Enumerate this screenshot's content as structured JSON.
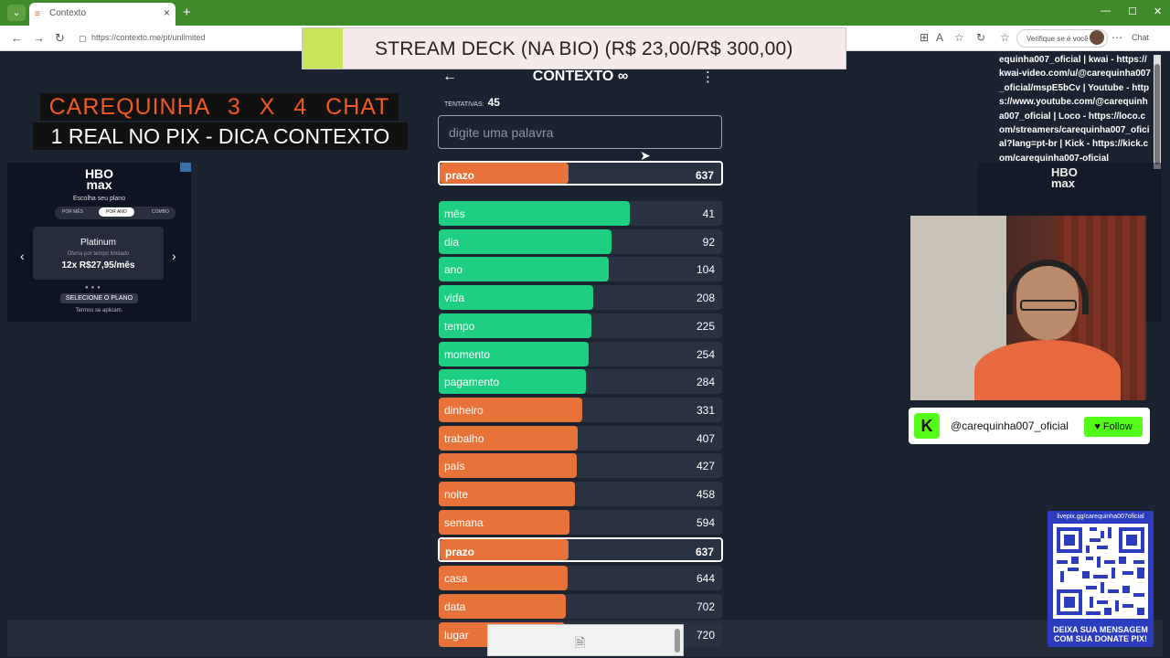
{
  "browser": {
    "tab_title": "Contexto",
    "url": "https://contexto.me/pt/unlimited",
    "search_pill": "Verifique se é você",
    "copilot_label": "Chat"
  },
  "overlay": {
    "stream_banner": "STREAM DECK (NA BIO) (R$ 23,00/R$ 300,00)",
    "chat_title": "CAREQUINHA 3 X 4 CHAT",
    "chat_subtitle": "1 REAL NO PIX - DICA CONTEXTO",
    "links_text": "equinha007_oficial | kwai - https://kwai-video.com/u/@carequinha007_oficial/mspE5bCv | Youtube - https://www.youtube.com/@carequinha007_oficial | Loco - https://loco.com/streamers/carequinha007_oficial?lang=pt-br | Kick - https://kick.com/carequinha007-oficial",
    "kick_letter": "K",
    "kick_user": "@carequinha007_oficial",
    "kick_follow": "♥ Follow",
    "qr_url": "livepix.gg/carequinha007oficial",
    "qr_message": "DEIXA SUA MENSAGEM COM SUA DONATE PIX!"
  },
  "ad": {
    "logo_top": "HBO",
    "logo_bottom": "max",
    "choose_plan": "Escolha seu plano",
    "tab_monthly": "POR MÊS",
    "tab_annual": "POR ANO",
    "tab_combo": "COMBO",
    "plan_name": "Platinum",
    "plan_note": "Oferta por tempo limitado",
    "plan_price": "12x R$27,95/mês",
    "select_button": "SELECIONE O PLANO",
    "terms": "Termos se aplicam."
  },
  "game": {
    "title": "CONTEXTO ∞",
    "attempts_label": "TENTATIVAS:",
    "attempts_value": "45",
    "input_placeholder": "digite uma palavra",
    "last_guess": {
      "word": "prazo",
      "rank": 637,
      "color": "#e8733a"
    },
    "guesses": [
      {
        "word": "mês",
        "rank": 41,
        "color": "#1ecf82"
      },
      {
        "word": "dia",
        "rank": 92,
        "color": "#1ecf82"
      },
      {
        "word": "ano",
        "rank": 104,
        "color": "#1ecf82"
      },
      {
        "word": "vida",
        "rank": 208,
        "color": "#1ecf82"
      },
      {
        "word": "tempo",
        "rank": 225,
        "color": "#1ecf82"
      },
      {
        "word": "momento",
        "rank": 254,
        "color": "#1ecf82"
      },
      {
        "word": "pagamento",
        "rank": 284,
        "color": "#1ecf82"
      },
      {
        "word": "dinheiro",
        "rank": 331,
        "color": "#e8733a"
      },
      {
        "word": "trabalho",
        "rank": 407,
        "color": "#e8733a"
      },
      {
        "word": "país",
        "rank": 427,
        "color": "#e8733a"
      },
      {
        "word": "noite",
        "rank": 458,
        "color": "#e8733a"
      },
      {
        "word": "semana",
        "rank": 594,
        "color": "#e8733a"
      },
      {
        "word": "prazo",
        "rank": 637,
        "color": "#e8733a",
        "highlight": true
      },
      {
        "word": "casa",
        "rank": 644,
        "color": "#e8733a"
      },
      {
        "word": "data",
        "rank": 702,
        "color": "#e8733a"
      },
      {
        "word": "lugar",
        "rank": 720,
        "color": "#e8733a"
      }
    ]
  }
}
